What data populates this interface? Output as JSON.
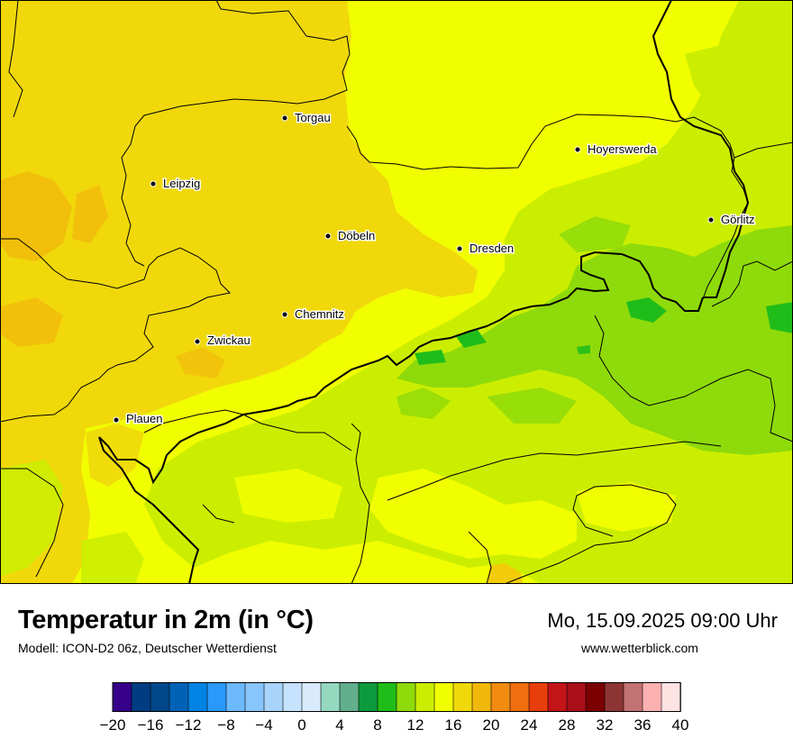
{
  "map": {
    "cities": [
      {
        "name": "Torgau"
      },
      {
        "name": "Leipzig"
      },
      {
        "name": "Hoyerswerda"
      },
      {
        "name": "Görlitz"
      },
      {
        "name": "Döbeln"
      },
      {
        "name": "Dresden"
      },
      {
        "name": "Chemnitz"
      },
      {
        "name": "Zwickau"
      },
      {
        "name": "Plauen"
      }
    ]
  },
  "footer": {
    "title": "Temperatur in 2m (in °C)",
    "model": "Modell: ICON-D2 06z, Deutscher Wetterdienst",
    "datetime": "Mo, 15.09.2025 09:00 Uhr",
    "website": "www.wetterblick.com"
  },
  "legend": {
    "min": -20,
    "max": 40,
    "step": 2,
    "tick_labels": [
      "−20",
      "−16",
      "−12",
      "−8",
      "−4",
      "0",
      "4",
      "8",
      "12",
      "16",
      "20",
      "24",
      "28",
      "32",
      "36",
      "40"
    ],
    "colors": [
      "#36008a",
      "#003c82",
      "#00478a",
      "#0062b6",
      "#0083e5",
      "#2a99fb",
      "#6cb9fc",
      "#88c5fc",
      "#a8d4fb",
      "#c6e2fd",
      "#d9ebfd",
      "#93d8bf",
      "#63ae8c",
      "#0d9a3c",
      "#20bd1a",
      "#8fda0a",
      "#cbee00",
      "#f1fe00",
      "#f0d80b",
      "#f2b70b",
      "#f18c11",
      "#f06e0f",
      "#e83e0c",
      "#c31418",
      "#aa101a",
      "#7a0001",
      "#8d3434",
      "#c27273",
      "#fcb1b1",
      "#fee3e3"
    ]
  },
  "colors": {
    "temp_12_14": "#cbee00",
    "temp_14_16": "#f1fe00",
    "temp_16_18": "#f0d80b",
    "temp_18_20": "#f2b70b",
    "temp_8_10": "#20bd1a",
    "temp_10_12": "#8fda0a"
  }
}
